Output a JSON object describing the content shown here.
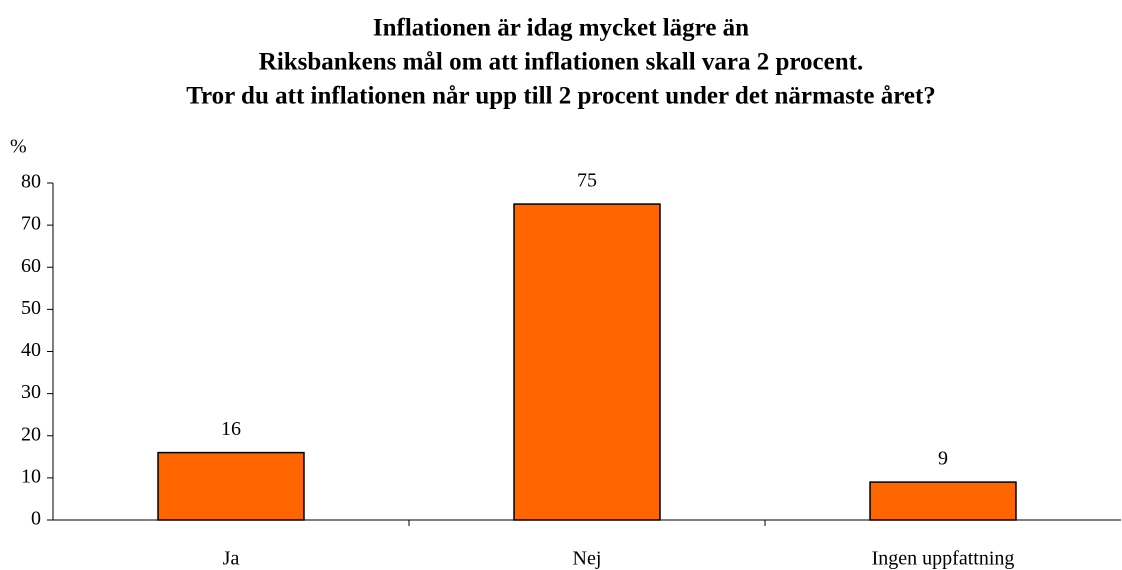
{
  "chart_data": {
    "type": "bar",
    "title": [
      "Inflationen är idag mycket lägre än",
      "Riksbankens mål om att inflationen skall vara 2 procent.",
      "Tror du att inflationen når upp till 2 procent under det närmaste året?"
    ],
    "ylabel": "%",
    "categories": [
      "Ja",
      "Nej",
      "Ingen uppfattning"
    ],
    "values": [
      16,
      75,
      9
    ],
    "color": "#ff6600",
    "ylim": [
      0,
      80
    ],
    "yticks": [
      0,
      10,
      20,
      30,
      40,
      50,
      60,
      70,
      80
    ],
    "grid": false
  }
}
